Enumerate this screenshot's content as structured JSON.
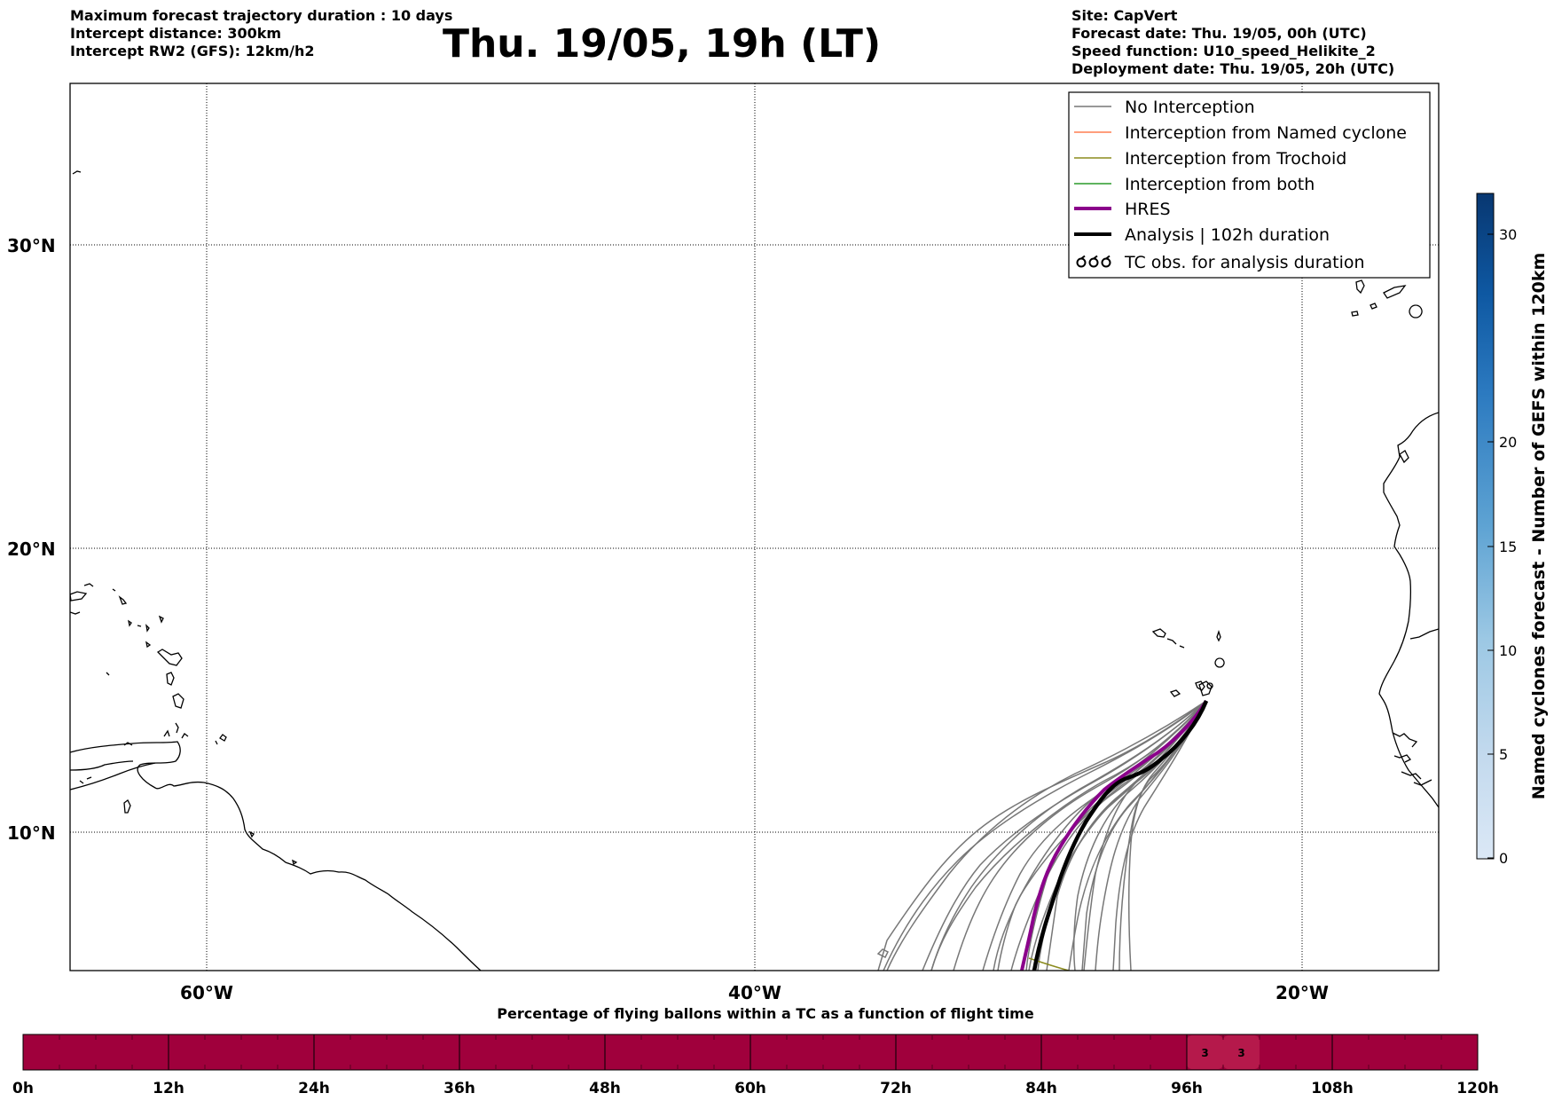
{
  "header_left": [
    "Maximum forecast trajectory duration : 10 days",
    "Intercept distance: 300km",
    "Intercept RW2 (GFS):  12km/h2"
  ],
  "title": "Thu. 19/05, 19h (LT)",
  "header_right": [
    "Site: CapVert",
    "Forecast date: Thu. 19/05, 00h (UTC)",
    "Speed function: U10_speed_Helikite_2",
    "Deployment date: Thu. 19/05, 20h (UTC)"
  ],
  "map": {
    "lat_labels": [
      "30°N",
      "20°N",
      "10°N"
    ],
    "lon_labels": [
      "60°W",
      "40°W",
      "20°W"
    ],
    "legend": [
      {
        "label": "No Interception",
        "color": "#777777",
        "style": "thin"
      },
      {
        "label": "Interception from Named cyclone",
        "color": "#ff7f50",
        "style": "thin"
      },
      {
        "label": "Interception from Trochoid",
        "color": "#8b8b1e",
        "style": "thin"
      },
      {
        "label": "Interception from both",
        "color": "#2a9a2a",
        "style": "thin"
      },
      {
        "label": "HRES",
        "color": "#8b008b",
        "style": "thick"
      },
      {
        "label": "Analysis | 102h duration",
        "color": "#000000",
        "style": "thick"
      },
      {
        "label": "TC obs. for analysis duration",
        "color": "#000000",
        "style": "symbol"
      }
    ]
  },
  "colorbar": {
    "label": "Named cyclones forecast - Number of GEFS within 120km",
    "ticks": [
      "0",
      "5",
      "10",
      "15",
      "20",
      "30"
    ]
  },
  "timebar": {
    "title": "Percentage of flying ballons within a TC as a function of flight time",
    "ticks": [
      "0h",
      "12h",
      "24h",
      "36h",
      "48h",
      "60h",
      "72h",
      "84h",
      "96h",
      "108h",
      "120h"
    ],
    "fill_color": "#a0003c",
    "highlight_color": "#b5194b",
    "cells": [
      {
        "hour": 97.5,
        "label": "3"
      },
      {
        "hour": 100.5,
        "label": "3"
      }
    ]
  }
}
